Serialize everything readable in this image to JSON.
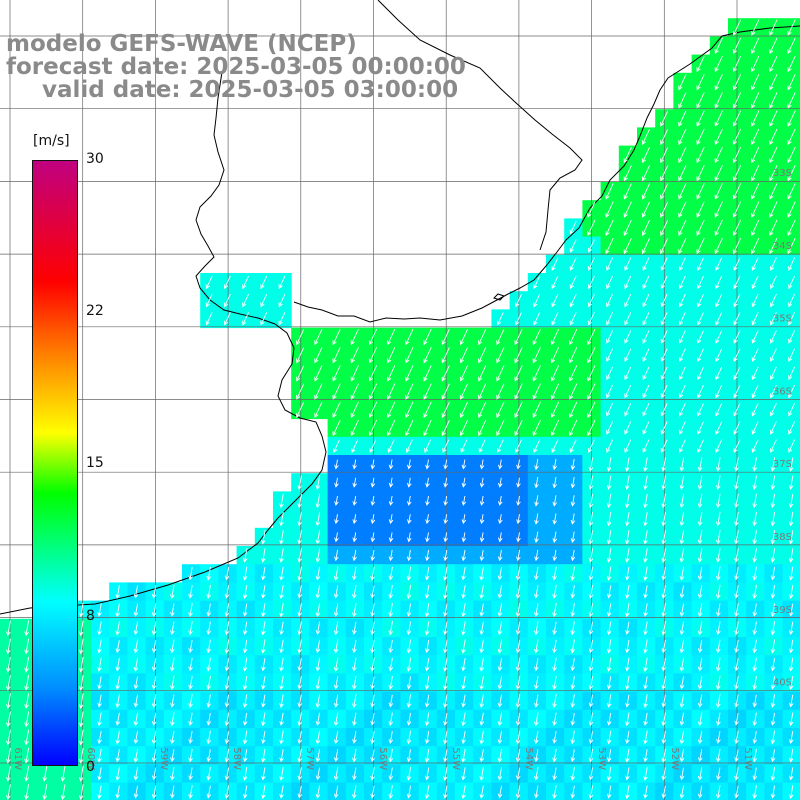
{
  "title": {
    "line1": "modelo GEFS-WAVE (NCEP)",
    "line2": "forecast date: 2025-03-05 00:00:00",
    "line3": "valid date: 2025-03-05 03:00:00"
  },
  "colorbar": {
    "unit": "[m/s]",
    "ticks": [
      "30",
      "22",
      "15",
      "8",
      "0"
    ],
    "tick_values": [
      30,
      22,
      15,
      8,
      0
    ],
    "range": [
      0,
      30
    ],
    "colors": [
      "#0000ff",
      "#0090ff",
      "#00ffff",
      "#00ff00",
      "#ffff00",
      "#ff8000",
      "#ff0000",
      "#c00080"
    ]
  },
  "map": {
    "variable": "wind speed and direction",
    "grid": true,
    "land_color": "#ffffff",
    "coastline_color": "#000000",
    "longitude_labels": [
      "61W",
      "60W",
      "59W",
      "58W",
      "57W",
      "56W",
      "55W",
      "54W",
      "53W",
      "52W",
      "51W"
    ],
    "latitude_labels": [
      "33S",
      "34S",
      "35S",
      "36S",
      "37S",
      "38S",
      "39S",
      "40S"
    ]
  }
}
